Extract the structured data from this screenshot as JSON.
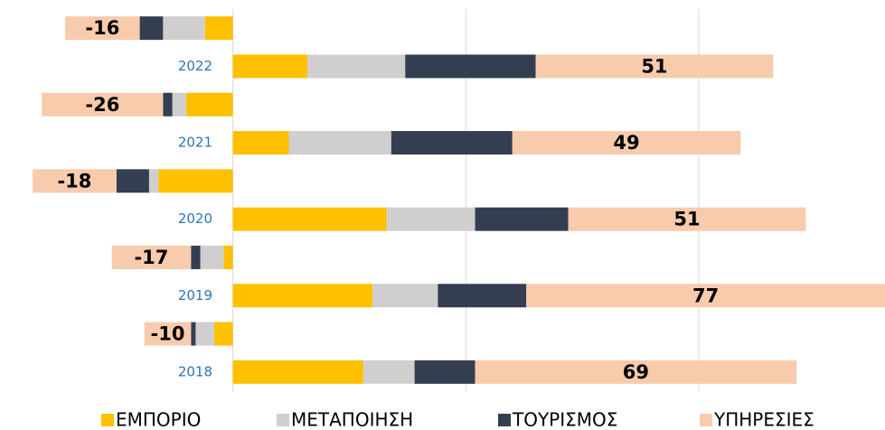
{
  "chart_data": {
    "type": "bar",
    "orientation": "horizontal",
    "stacked": true,
    "categories": [
      null,
      "2022",
      null,
      "2021",
      null,
      "2020",
      null,
      "2019",
      null,
      "2018"
    ],
    "series": [
      {
        "name": "ΕΜΠΟΡΙΟ",
        "color": "#ffc000",
        "values": [
          -6,
          16,
          -10,
          12,
          -16,
          33,
          -2,
          30,
          -4,
          28
        ]
      },
      {
        "name": "ΜΕΤΑΠΟΙΗΣΗ",
        "color": "#d0cece",
        "values": [
          -9,
          21,
          -3,
          22,
          -2,
          19,
          -5,
          14,
          -4,
          11
        ]
      },
      {
        "name": "ΤΟΥΡΙΣΜΟΣ",
        "color": "#333f50",
        "values": [
          -5,
          28,
          -2,
          26,
          -7,
          20,
          -2,
          19,
          -1,
          13
        ]
      },
      {
        "name": "ΥΠΗΡΕΣΙΕΣ",
        "color": "#f8cbad",
        "values": [
          -16,
          51,
          -26,
          49,
          -18,
          51,
          -17,
          77,
          -10,
          69
        ],
        "show_labels": true
      }
    ],
    "xlim": [
      -50,
      140
    ],
    "xticks": [
      0,
      50,
      100
    ],
    "grid": true,
    "legend": "bottom"
  }
}
